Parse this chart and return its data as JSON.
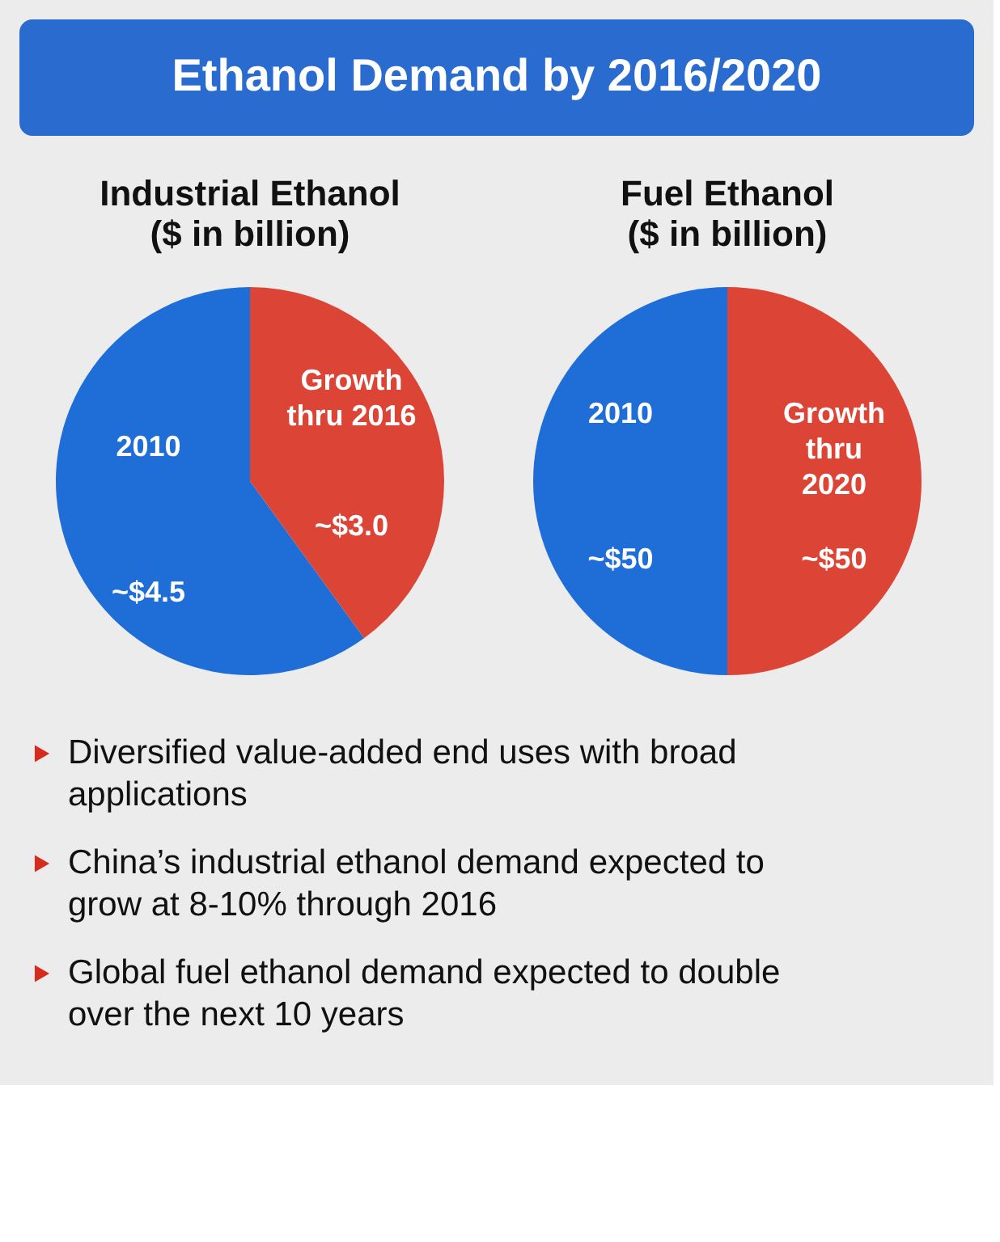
{
  "chart_data": [
    {
      "type": "other",
      "title": "Ethanol Demand by 2016/2020"
    },
    {
      "type": "pie",
      "title": "Industrial Ethanol",
      "subtitle": "($ in billion)",
      "categories": [
        "2010",
        "Growth thru 2016"
      ],
      "values": [
        4.5,
        3.0
      ],
      "value_labels": [
        "~$4.5",
        "~$3.0"
      ],
      "colors": [
        "#1f6ed8",
        "#dc4535"
      ]
    },
    {
      "type": "pie",
      "title": "Fuel Ethanol",
      "subtitle": "($ in billion)",
      "categories": [
        "2010",
        "Growth thru 2020"
      ],
      "values": [
        50,
        50
      ],
      "value_labels": [
        "~$50",
        "~$50"
      ],
      "colors": [
        "#1f6ed8",
        "#dc4535"
      ]
    },
    {
      "type": "other",
      "annotations": [
        "Diversified value-added end uses with broad applications",
        "China’s industrial ethanol demand expected to grow at 8-10% through 2016",
        "Global fuel ethanol demand expected to double over the next 10 years"
      ]
    }
  ]
}
